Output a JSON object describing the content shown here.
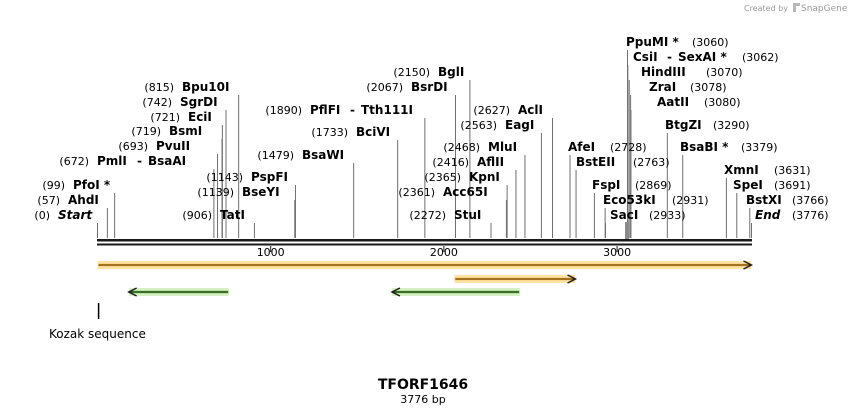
{
  "watermark": {
    "prefix": "Created by",
    "brand": "SnapGene"
  },
  "sequence": {
    "name": "TFORF1646",
    "length_label": "3776 bp",
    "length": 3776
  },
  "colors": {
    "orange_fill": "#f5a623",
    "orange_halo": "#fbe3a8",
    "green_fill": "#4aa02c",
    "green_halo": "#d6efc4",
    "dark_line": "#1a1a1a"
  },
  "ruler": {
    "ticks": [
      "1000",
      "2000",
      "3000"
    ]
  },
  "sites": [
    {
      "name": "Start",
      "pos": "(0)",
      "bp": 0,
      "italic": true
    },
    {
      "name": "AhdI",
      "pos": "(57)",
      "bp": 57
    },
    {
      "name": "PfoI *",
      "pos": "(99)",
      "bp": 99
    },
    {
      "name": "PmlI",
      "second": "BsaAI",
      "pos": "(672)",
      "bp": 672
    },
    {
      "name": "PvuII",
      "pos": "(693)",
      "bp": 693
    },
    {
      "name": "BsmI",
      "pos": "(719)",
      "bp": 719
    },
    {
      "name": "EciI",
      "pos": "(721)",
      "bp": 721
    },
    {
      "name": "SgrDI",
      "pos": "(742)",
      "bp": 742
    },
    {
      "name": "Bpu10I",
      "pos": "(815)",
      "bp": 815
    },
    {
      "name": "TatI",
      "pos": "(906)",
      "bp": 906
    },
    {
      "name": "BseYI",
      "pos": "(1139)",
      "bp": 1139
    },
    {
      "name": "PspFI",
      "pos": "(1143)",
      "bp": 1143
    },
    {
      "name": "BsaWI",
      "pos": "(1479)",
      "bp": 1479
    },
    {
      "name": "BciVI",
      "pos": "(1733)",
      "bp": 1733
    },
    {
      "name": "PflFI",
      "second": "Tth111I",
      "pos": "(1890)",
      "bp": 1890
    },
    {
      "name": "BsrDI",
      "pos": "(2067)",
      "bp": 2067
    },
    {
      "name": "BglI",
      "pos": "(2150)",
      "bp": 2150
    },
    {
      "name": "StuI",
      "pos": "(2272)",
      "bp": 2272
    },
    {
      "name": "Acc65I",
      "pos": "(2361)",
      "bp": 2361
    },
    {
      "name": "KpnI",
      "pos": "(2365)",
      "bp": 2365
    },
    {
      "name": "AflII",
      "pos": "(2416)",
      "bp": 2416
    },
    {
      "name": "MluI",
      "pos": "(2468)",
      "bp": 2468
    },
    {
      "name": "EagI",
      "pos": "(2563)",
      "bp": 2563
    },
    {
      "name": "AclI",
      "pos": "(2627)",
      "bp": 2627
    },
    {
      "name": "AfeI",
      "pos": "(2728)",
      "bp": 2728
    },
    {
      "name": "BstEII",
      "pos": "(2763)",
      "bp": 2763
    },
    {
      "name": "FspI",
      "pos": "(2869)",
      "bp": 2869
    },
    {
      "name": "Eco53kI",
      "pos": "(2931)",
      "bp": 2931
    },
    {
      "name": "SacI",
      "pos": "(2933)",
      "bp": 2933
    },
    {
      "name": "PpuMI *",
      "pos": "(3060)",
      "bp": 3060
    },
    {
      "name": "CsiI",
      "second": "SexAI *",
      "pos": "(3062)",
      "bp": 3062
    },
    {
      "name": "HindIII",
      "pos": "(3070)",
      "bp": 3070
    },
    {
      "name": "ZraI",
      "pos": "(3078)",
      "bp": 3078
    },
    {
      "name": "AatII",
      "pos": "(3080)",
      "bp": 3080
    },
    {
      "name": "BtgZI",
      "pos": "(3290)",
      "bp": 3290
    },
    {
      "name": "BsaBI *",
      "pos": "(3379)",
      "bp": 3379
    },
    {
      "name": "XmnI",
      "pos": "(3631)",
      "bp": 3631
    },
    {
      "name": "SpeI",
      "pos": "(3691)",
      "bp": 3691
    },
    {
      "name": "BstXI",
      "pos": "(3766)",
      "bp": 3766
    },
    {
      "name": "End",
      "pos": "(3776)",
      "bp": 3776,
      "italic": true
    }
  ],
  "features": [
    {
      "type": "orange",
      "direction": "forward",
      "start_bp": 0,
      "end_bp": 3776
    },
    {
      "type": "orange",
      "direction": "forward",
      "start_bp": 2060,
      "end_bp": 2760
    },
    {
      "type": "green",
      "direction": "reverse",
      "start_bp": 180,
      "end_bp": 760
    },
    {
      "type": "green",
      "direction": "reverse",
      "start_bp": 1700,
      "end_bp": 2440
    }
  ],
  "kozak": {
    "label": "Kozak sequence",
    "bp": 2
  }
}
